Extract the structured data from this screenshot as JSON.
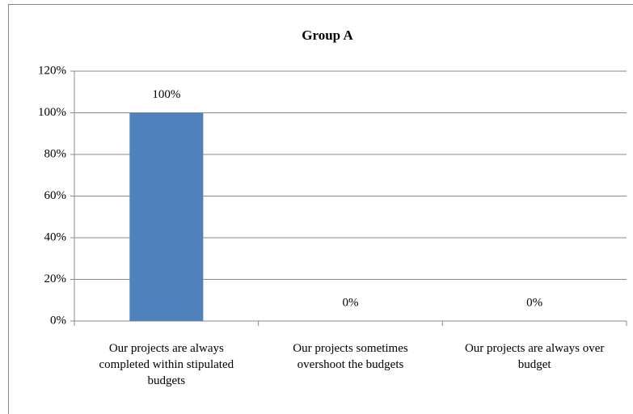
{
  "chart_data": {
    "type": "bar",
    "title": "Group A",
    "categories": [
      "Our projects are always completed within stipulated budgets",
      "Our projects sometimes overshoot the budgets",
      "Our projects are always over budget"
    ],
    "values": [
      100,
      0,
      0
    ],
    "value_labels": [
      "100%",
      "0%",
      "0%"
    ],
    "color": "#4f81bd",
    "ylim": [
      0,
      120
    ],
    "yticks": [
      {
        "value": 0,
        "label": "0%"
      },
      {
        "value": 20,
        "label": "20%"
      },
      {
        "value": 40,
        "label": "40%"
      },
      {
        "value": 60,
        "label": "60%"
      },
      {
        "value": 80,
        "label": "80%"
      },
      {
        "value": 100,
        "label": "100%"
      },
      {
        "value": 120,
        "label": "120%"
      }
    ],
    "grid": true
  }
}
